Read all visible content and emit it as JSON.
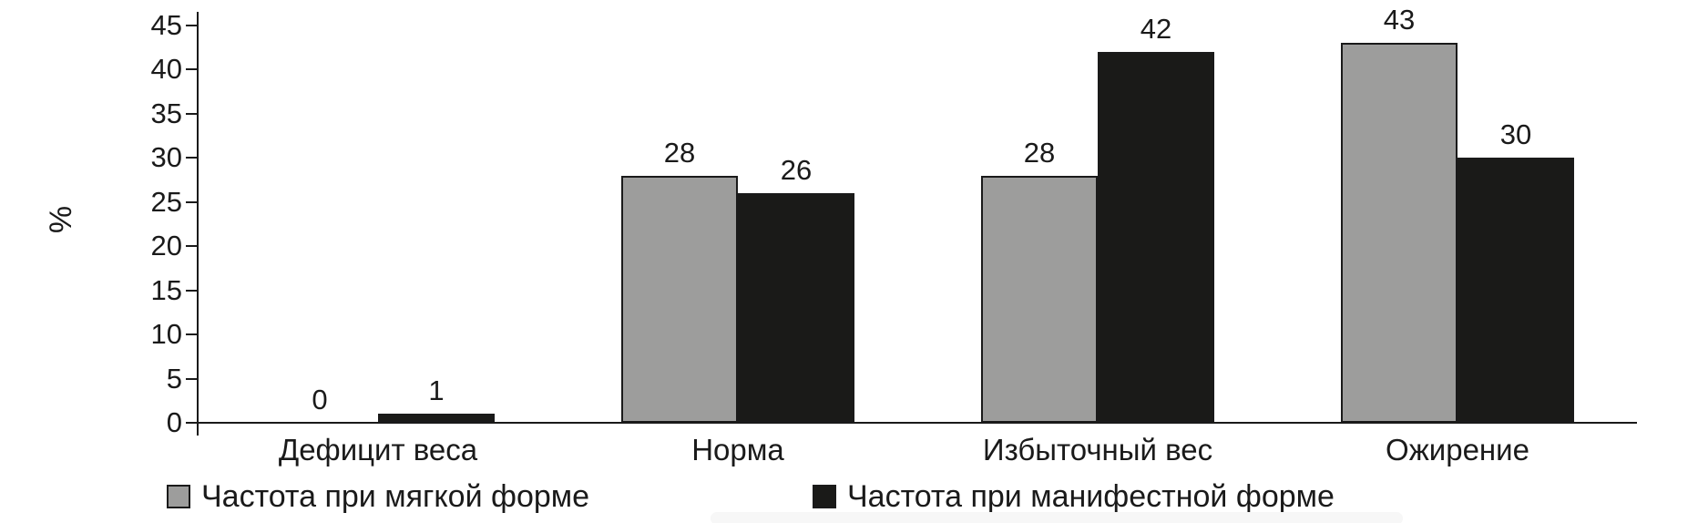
{
  "chart_data": {
    "type": "bar",
    "title": "",
    "xlabel": "",
    "ylabel": "%",
    "ylim": [
      0,
      45
    ],
    "yticks": [
      0,
      5,
      10,
      15,
      20,
      25,
      30,
      35,
      40,
      45
    ],
    "grid": false,
    "legend_position": "bottom",
    "bar_labels_shown": true,
    "categories": [
      "Дефицит веса",
      "Норма",
      "Избыточный вес",
      "Ожирение"
    ],
    "series": [
      {
        "name": "Частота при мягкой форме",
        "color": "#9d9d9c",
        "values": [
          0,
          28,
          28,
          43
        ]
      },
      {
        "name": "Частота при манифестной форме",
        "color": "#1a1a18",
        "values": [
          1,
          26,
          42,
          30
        ]
      }
    ]
  },
  "colors": {
    "background": "#ffffff",
    "axis": "#1a1a1a",
    "text": "#1a1a1a",
    "bar_border": "#1a1a1a"
  }
}
